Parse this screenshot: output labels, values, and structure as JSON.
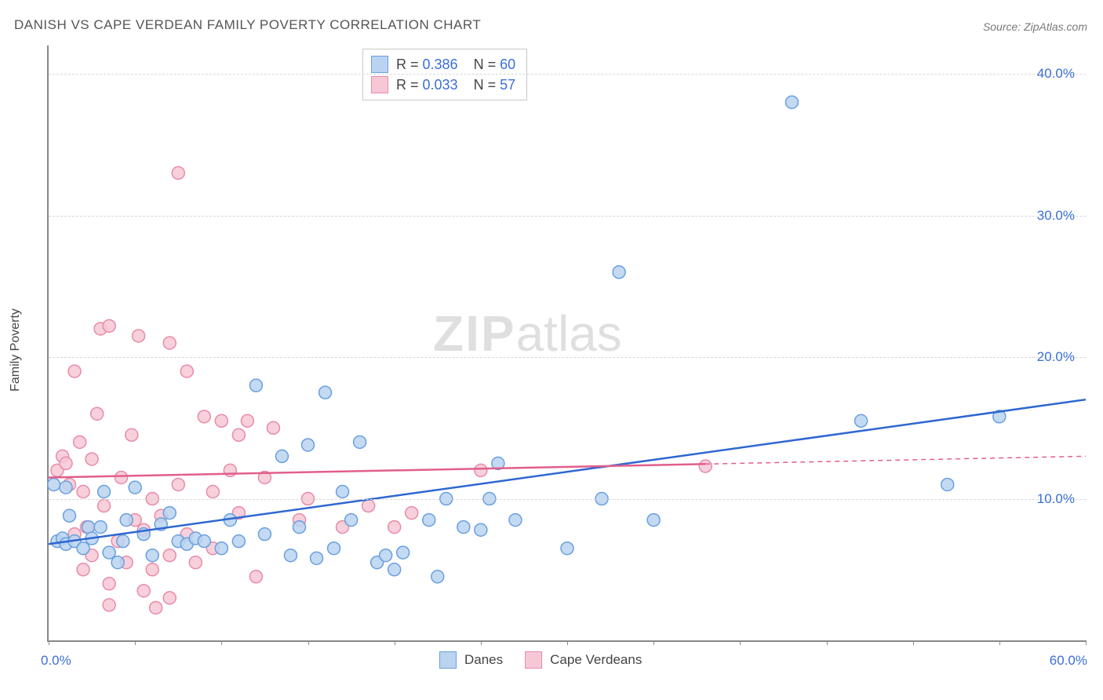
{
  "title": "DANISH VS CAPE VERDEAN FAMILY POVERTY CORRELATION CHART",
  "source": "Source: ZipAtlas.com",
  "ylabel": "Family Poverty",
  "watermark_zip": "ZIP",
  "watermark_atlas": "atlas",
  "chart": {
    "type": "scatter",
    "background_color": "#ffffff",
    "grid_color": "#d8d8d8",
    "axis_color": "#888888",
    "text_color": "#555555",
    "value_color": "#3b6fd6",
    "xlim": [
      0,
      60
    ],
    "ylim": [
      0,
      42
    ],
    "xtick_label_left": "0.0%",
    "xtick_label_right": "60.0%",
    "xticks": [
      0,
      5,
      10,
      15,
      20,
      25,
      30,
      35,
      40,
      45,
      50,
      55,
      60
    ],
    "yticks": [
      10,
      20,
      30,
      40
    ],
    "ytick_labels": [
      "10.0%",
      "20.0%",
      "30.0%",
      "40.0%"
    ],
    "marker_radius": 8,
    "marker_stroke_width": 1.5,
    "line_width": 2.5,
    "series": [
      {
        "name": "Danes",
        "label": "Danes",
        "fill": "#b9d3f0",
        "stroke": "#6a9fe0",
        "line_color": "#2e67d1",
        "R": "0.386",
        "N": "60",
        "trend": {
          "x1": 0,
          "y1": 6.8,
          "x2": 60,
          "y2": 17.0
        },
        "solid_until_x": 60,
        "points": [
          [
            0.3,
            11.0
          ],
          [
            0.5,
            7.0
          ],
          [
            0.8,
            7.2
          ],
          [
            1.0,
            10.8
          ],
          [
            1.0,
            6.8
          ],
          [
            1.2,
            8.8
          ],
          [
            1.5,
            7.0
          ],
          [
            2.0,
            6.5
          ],
          [
            2.3,
            8.0
          ],
          [
            2.5,
            7.2
          ],
          [
            3.0,
            8.0
          ],
          [
            3.2,
            10.5
          ],
          [
            3.5,
            6.2
          ],
          [
            4.0,
            5.5
          ],
          [
            4.3,
            7.0
          ],
          [
            4.5,
            8.5
          ],
          [
            5.0,
            10.8
          ],
          [
            5.5,
            7.5
          ],
          [
            6.0,
            6.0
          ],
          [
            6.5,
            8.2
          ],
          [
            7.0,
            9.0
          ],
          [
            7.5,
            7.0
          ],
          [
            8.0,
            6.8
          ],
          [
            8.5,
            7.2
          ],
          [
            9.0,
            7.0
          ],
          [
            10.0,
            6.5
          ],
          [
            10.5,
            8.5
          ],
          [
            11.0,
            7.0
          ],
          [
            12.0,
            18.0
          ],
          [
            12.5,
            7.5
          ],
          [
            13.5,
            13.0
          ],
          [
            14.0,
            6.0
          ],
          [
            14.5,
            8.0
          ],
          [
            15.0,
            13.8
          ],
          [
            15.5,
            5.8
          ],
          [
            16.0,
            17.5
          ],
          [
            16.5,
            6.5
          ],
          [
            17.0,
            10.5
          ],
          [
            17.5,
            8.5
          ],
          [
            18.0,
            14.0
          ],
          [
            19.0,
            5.5
          ],
          [
            19.5,
            6.0
          ],
          [
            20.0,
            5.0
          ],
          [
            20.5,
            6.2
          ],
          [
            22.0,
            8.5
          ],
          [
            22.5,
            4.5
          ],
          [
            23.0,
            10.0
          ],
          [
            24.0,
            8.0
          ],
          [
            25.0,
            7.8
          ],
          [
            25.5,
            10.0
          ],
          [
            26.0,
            12.5
          ],
          [
            27.0,
            8.5
          ],
          [
            30.0,
            6.5
          ],
          [
            32.0,
            10.0
          ],
          [
            33.0,
            26.0
          ],
          [
            35.0,
            8.5
          ],
          [
            43.0,
            38.0
          ],
          [
            47.0,
            15.5
          ],
          [
            52.0,
            11.0
          ],
          [
            55.0,
            15.8
          ]
        ]
      },
      {
        "name": "Cape Verdeans",
        "label": "Cape Verdeans",
        "fill": "#f6c8d5",
        "stroke": "#e88ba8",
        "line_color": "#e15f8b",
        "R": "0.033",
        "N": "57",
        "trend": {
          "x1": 0,
          "y1": 11.5,
          "x2": 60,
          "y2": 13.0
        },
        "solid_until_x": 38,
        "points": [
          [
            0.5,
            12.0
          ],
          [
            0.8,
            13.0
          ],
          [
            1.0,
            12.5
          ],
          [
            1.2,
            11.0
          ],
          [
            1.5,
            19.0
          ],
          [
            1.5,
            7.5
          ],
          [
            1.8,
            14.0
          ],
          [
            2.0,
            10.5
          ],
          [
            2.0,
            5.0
          ],
          [
            2.2,
            8.0
          ],
          [
            2.5,
            12.8
          ],
          [
            2.5,
            6.0
          ],
          [
            2.8,
            16.0
          ],
          [
            3.0,
            22.0
          ],
          [
            3.2,
            9.5
          ],
          [
            3.5,
            22.2
          ],
          [
            3.5,
            4.0
          ],
          [
            3.5,
            2.5
          ],
          [
            4.0,
            7.0
          ],
          [
            4.2,
            11.5
          ],
          [
            4.5,
            5.5
          ],
          [
            4.8,
            14.5
          ],
          [
            5.0,
            8.5
          ],
          [
            5.2,
            21.5
          ],
          [
            5.5,
            3.5
          ],
          [
            5.5,
            7.8
          ],
          [
            6.0,
            10.0
          ],
          [
            6.0,
            5.0
          ],
          [
            6.2,
            2.3
          ],
          [
            6.5,
            8.8
          ],
          [
            7.0,
            21.0
          ],
          [
            7.0,
            6.0
          ],
          [
            7.0,
            3.0
          ],
          [
            7.5,
            11.0
          ],
          [
            7.5,
            33.0
          ],
          [
            8.0,
            19.0
          ],
          [
            8.0,
            7.5
          ],
          [
            8.5,
            5.5
          ],
          [
            9.0,
            15.8
          ],
          [
            9.5,
            10.5
          ],
          [
            9.5,
            6.5
          ],
          [
            10.0,
            15.5
          ],
          [
            10.5,
            12.0
          ],
          [
            11.0,
            9.0
          ],
          [
            11.0,
            14.5
          ],
          [
            11.5,
            15.5
          ],
          [
            12.0,
            4.5
          ],
          [
            12.5,
            11.5
          ],
          [
            13.0,
            15.0
          ],
          [
            14.5,
            8.5
          ],
          [
            15.0,
            10.0
          ],
          [
            17.0,
            8.0
          ],
          [
            18.5,
            9.5
          ],
          [
            20.0,
            8.0
          ],
          [
            21.0,
            9.0
          ],
          [
            25.0,
            12.0
          ],
          [
            38.0,
            12.3
          ]
        ]
      }
    ]
  },
  "legend_top": {
    "r_prefix": "R = ",
    "n_prefix": "N = "
  },
  "legend_bottom": {
    "label1": "Danes",
    "label2": "Cape Verdeans"
  }
}
